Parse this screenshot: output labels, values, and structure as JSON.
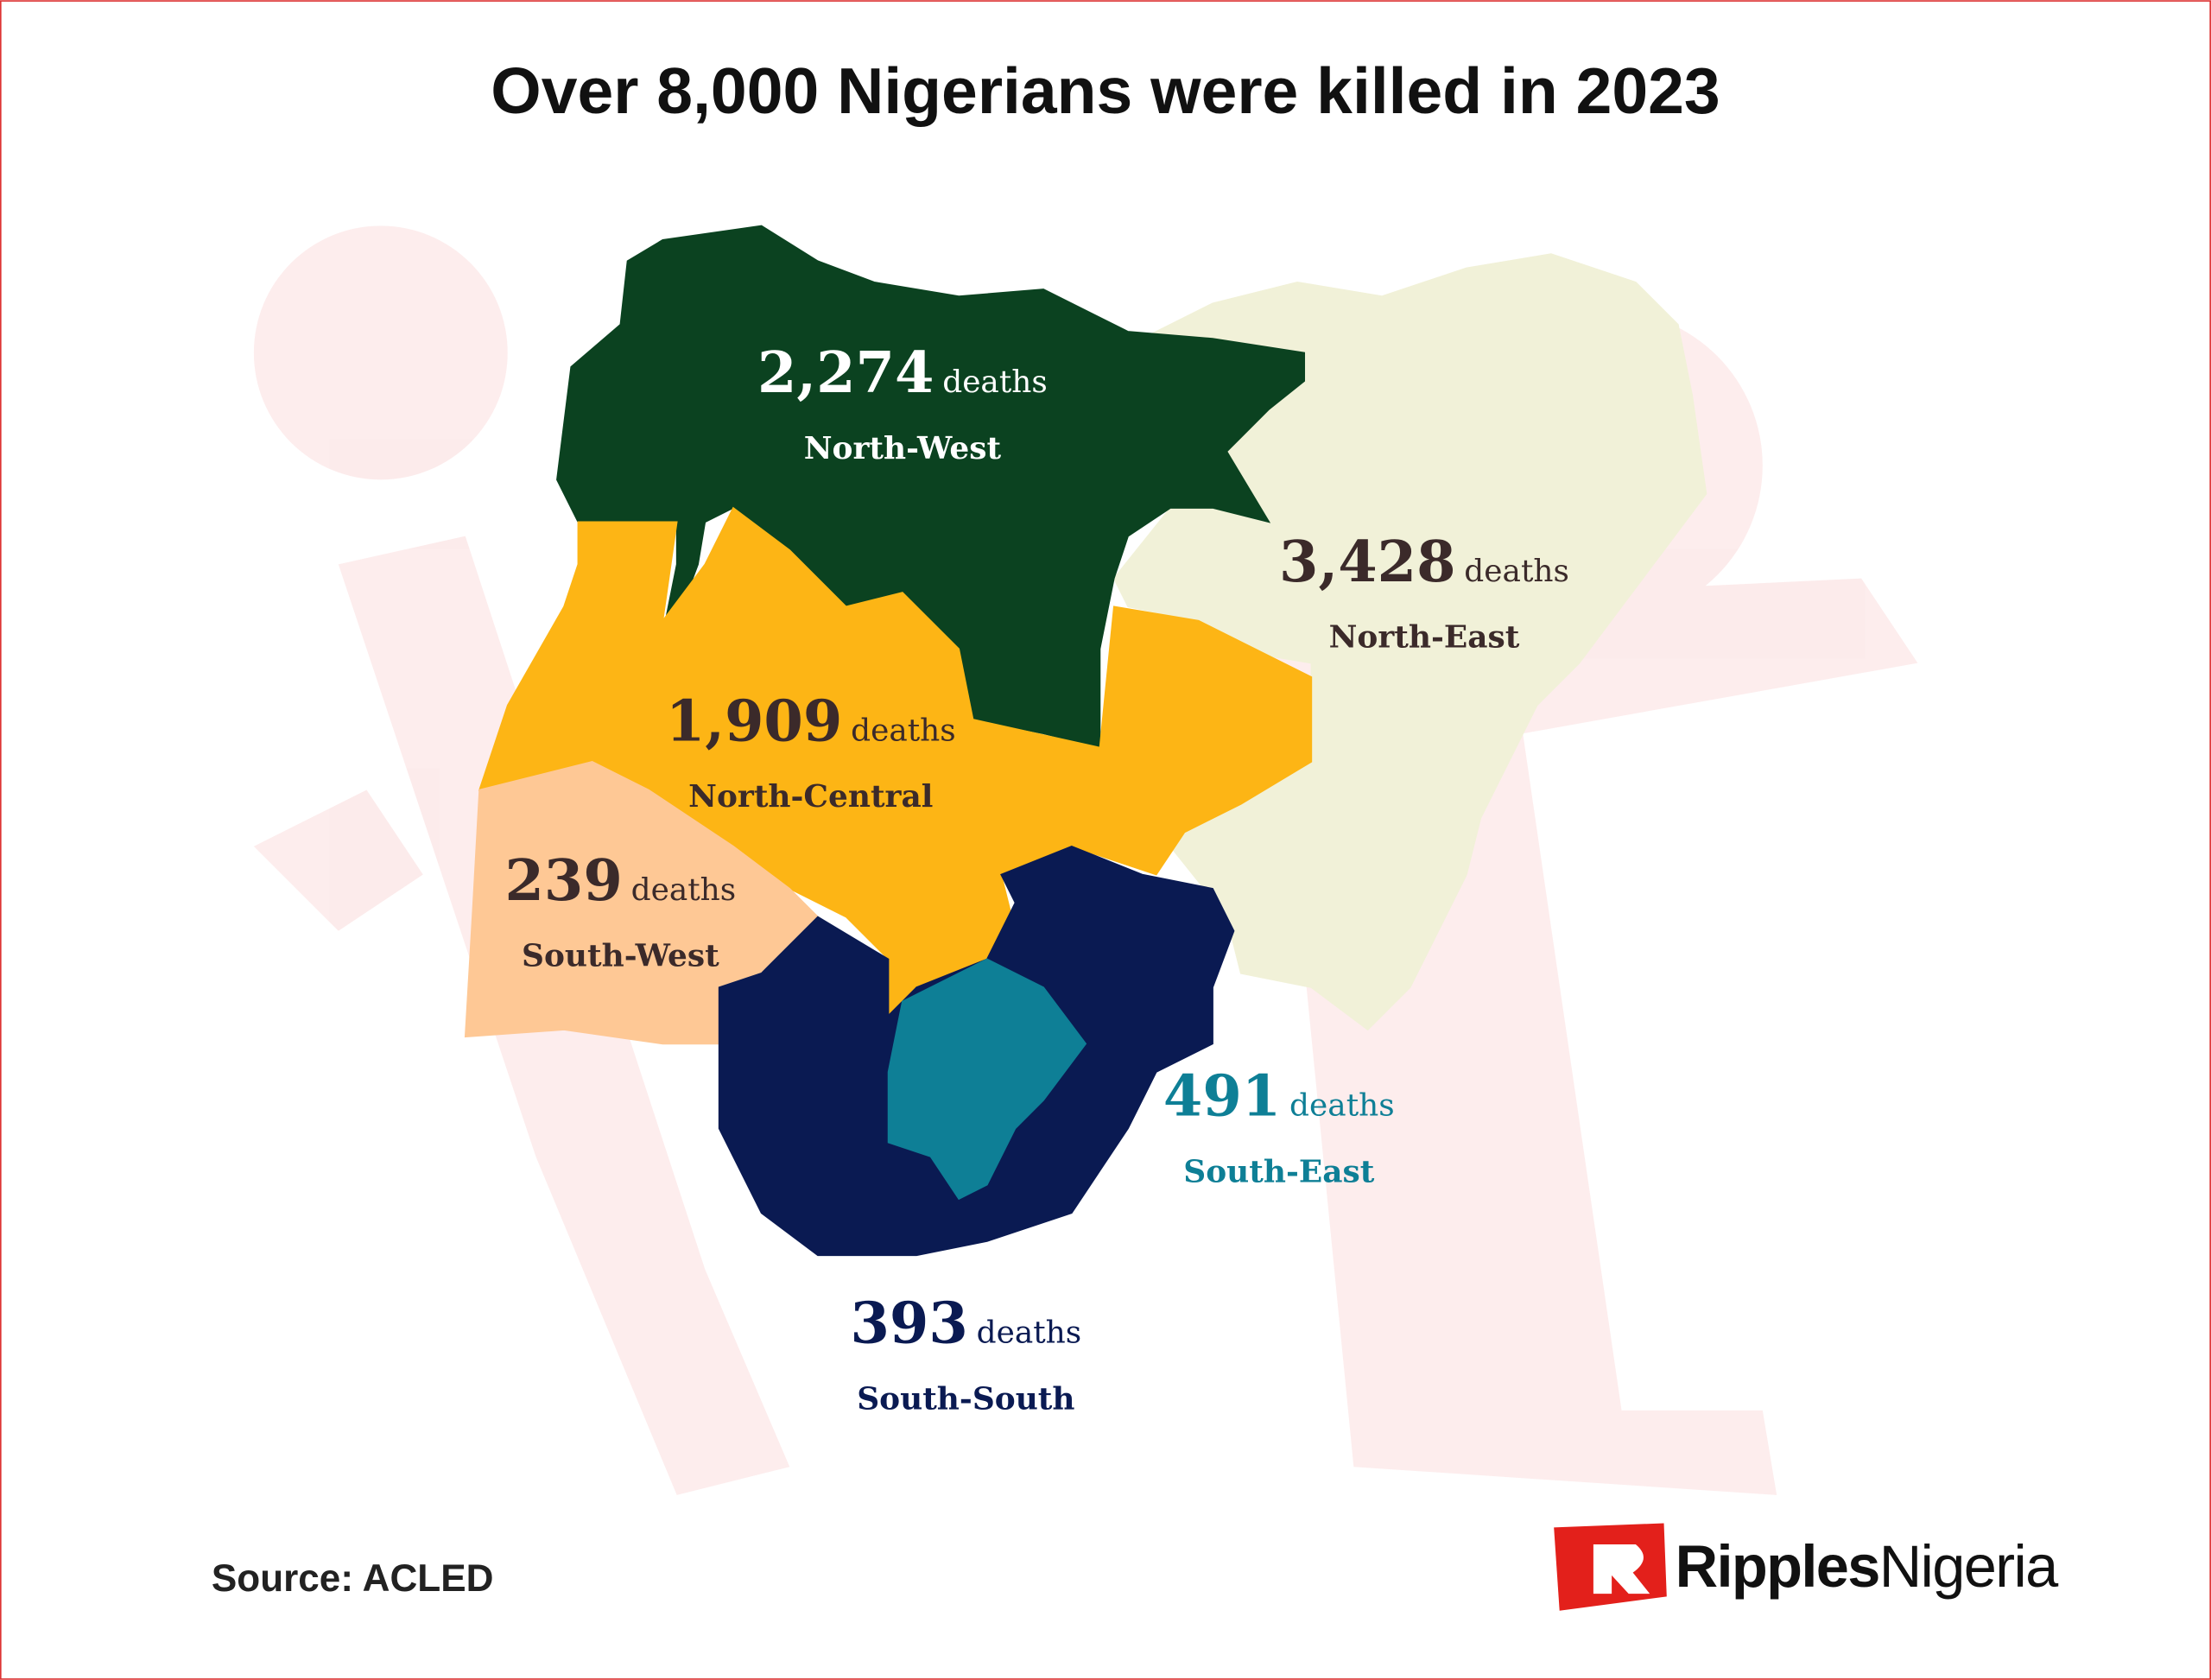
{
  "title": "Over 8,000 Nigerians were killed in 2023",
  "unit": "deaths",
  "regions": [
    {
      "name": "North-West",
      "deaths": 2274,
      "deaths_label": "2,274",
      "color": "#0b4220",
      "label_color": "#ffffff"
    },
    {
      "name": "North-East",
      "deaths": 3428,
      "deaths_label": "3,428",
      "color": "#f1f1d8",
      "label_color": "#3b2a2a"
    },
    {
      "name": "North-Central",
      "deaths": 1909,
      "deaths_label": "1,909",
      "color": "#fdb515",
      "label_color": "#3b2a2a"
    },
    {
      "name": "South-West",
      "deaths": 239,
      "deaths_label": "239",
      "color": "#fec895",
      "label_color": "#3b2a2a"
    },
    {
      "name": "South-South",
      "deaths": 393,
      "deaths_label": "393",
      "color": "#0a1a52",
      "label_color": "#0a1a52"
    },
    {
      "name": "South-East",
      "deaths": 491,
      "deaths_label": "491",
      "color": "#0e7f96",
      "label_color": "#0e7f96"
    }
  ],
  "source": "Source: ACLED",
  "brand": {
    "first": "Ripples",
    "second": "Nigeria"
  }
}
